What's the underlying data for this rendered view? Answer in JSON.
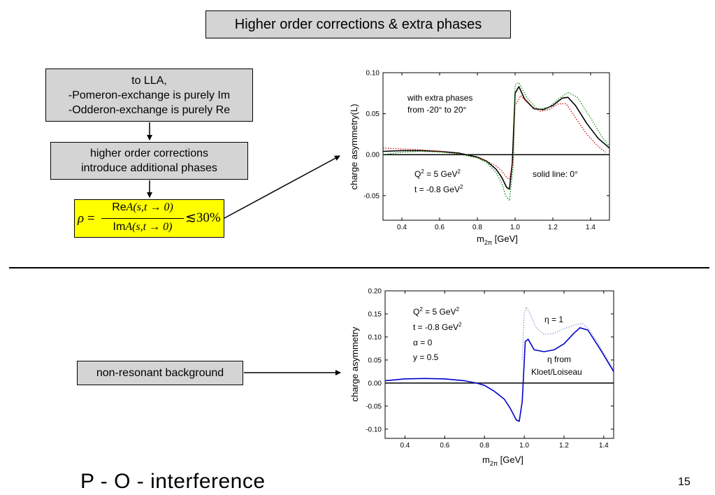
{
  "title": "Higher order corrections & extra phases",
  "flow": {
    "lla_lines": [
      "to LLA,",
      "-Pomeron-exchange is purely Im",
      "-Odderon-exchange is purely Re"
    ],
    "hoc_lines": [
      "higher order corrections",
      "introduce additional phases"
    ],
    "formula": {
      "rho": "ρ",
      "equals": "=",
      "num_re": "Re",
      "num_a": "A(s,t → 0)",
      "den_im": "Im",
      "den_a": "A(s,t → 0)",
      "rel": "≲",
      "pct": "30%"
    },
    "background_label": "non-resonant background"
  },
  "slide_title": "P - O - interference",
  "slide_number": "15",
  "chart_data": [
    {
      "type": "line",
      "xlabel": "m",
      "xlabel_sub": "2π",
      "xlabel_unit": " [GeV]",
      "ylabel": "charge asymmetry(L)",
      "xlim": [
        0.3,
        1.5
      ],
      "ylim": [
        -0.08,
        0.1
      ],
      "xticks": [
        "0.4",
        "0.6",
        "0.8",
        "1.0",
        "1.2",
        "1.4"
      ],
      "xtick_values": [
        0.4,
        0.6,
        0.8,
        1.0,
        1.2,
        1.4
      ],
      "yticks": [
        "-0.05",
        "0.00",
        "0.05",
        "0.10"
      ],
      "ytick_values": [
        -0.05,
        0.0,
        0.05,
        0.1
      ],
      "annotations": {
        "phases_1": "with extra phases",
        "phases_2": "from -20° to 20°",
        "q2": "Q",
        "q2_sup": "2",
        "q2_rest": " = 5 GeV",
        "q2_unit_sup": "2",
        "t": "t = -0.8 GeV",
        "t_sup": "2",
        "solid": "solid line: 0°"
      },
      "series": [
        {
          "style": "solid",
          "color": "#000000",
          "x": [
            0.3,
            0.4,
            0.5,
            0.6,
            0.7,
            0.8,
            0.85,
            0.9,
            0.93,
            0.955,
            0.97,
            0.985,
            1.0,
            1.02,
            1.05,
            1.1,
            1.15,
            1.2,
            1.25,
            1.28,
            1.32,
            1.38,
            1.44,
            1.5
          ],
          "y": [
            0.004,
            0.005,
            0.005,
            0.004,
            0.002,
            -0.003,
            -0.008,
            -0.018,
            -0.028,
            -0.04,
            -0.042,
            -0.01,
            0.075,
            0.083,
            0.068,
            0.056,
            0.055,
            0.06,
            0.069,
            0.07,
            0.06,
            0.038,
            0.02,
            0.008
          ]
        },
        {
          "style": "dotted",
          "color": "#cc0000",
          "x": [
            0.3,
            0.4,
            0.5,
            0.6,
            0.7,
            0.8,
            0.85,
            0.9,
            0.93,
            0.955,
            0.97,
            0.99,
            1.0,
            1.03,
            1.08,
            1.13,
            1.18,
            1.23,
            1.27,
            1.32,
            1.38,
            1.44,
            1.48
          ],
          "y": [
            0.008,
            0.007,
            0.006,
            0.004,
            0.001,
            -0.004,
            -0.008,
            -0.014,
            -0.02,
            -0.028,
            -0.03,
            -0.005,
            0.06,
            0.072,
            0.06,
            0.053,
            0.055,
            0.062,
            0.062,
            0.045,
            0.025,
            0.01,
            0.003
          ]
        },
        {
          "style": "dotted",
          "color": "#008800",
          "x": [
            0.3,
            0.4,
            0.5,
            0.6,
            0.7,
            0.8,
            0.85,
            0.9,
            0.93,
            0.95,
            0.97,
            0.99,
            1.0,
            1.02,
            1.06,
            1.12,
            1.18,
            1.23,
            1.28,
            1.33,
            1.4,
            1.46,
            1.5
          ],
          "y": [
            0.0,
            0.003,
            0.004,
            0.003,
            0.001,
            -0.004,
            -0.01,
            -0.022,
            -0.035,
            -0.05,
            -0.056,
            -0.015,
            0.085,
            0.088,
            0.07,
            0.055,
            0.058,
            0.068,
            0.076,
            0.07,
            0.045,
            0.022,
            0.01
          ]
        }
      ]
    },
    {
      "type": "line",
      "xlabel": "m",
      "xlabel_sub": "2π",
      "xlabel_unit": " [GeV]",
      "ylabel": "charge asymmetry",
      "xlim": [
        0.3,
        1.45
      ],
      "ylim": [
        -0.12,
        0.2
      ],
      "xticks": [
        "0.4",
        "0.6",
        "0.8",
        "1.0",
        "1.2",
        "1.4"
      ],
      "xtick_values": [
        0.4,
        0.6,
        0.8,
        1.0,
        1.2,
        1.4
      ],
      "yticks": [
        "-0.10",
        "-0.05",
        "0.00",
        "0.05",
        "0.10",
        "0.15",
        "0.20"
      ],
      "ytick_values": [
        -0.1,
        -0.05,
        0.0,
        0.05,
        0.1,
        0.15,
        0.2
      ],
      "annotations": {
        "q2": "Q",
        "q2_sup": "2",
        "q2_rest": " = 5 GeV",
        "q2_unit_sup": "2",
        "t": "t = -0.8 GeV",
        "t_sup": "2",
        "alpha": "α = 0",
        "y": "y = 0.5",
        "eta1": "η = 1",
        "eta_from": "η from",
        "kl": "Kloet/Loiseau"
      },
      "series": [
        {
          "style": "solid",
          "color": "#0000cc",
          "x": [
            0.3,
            0.4,
            0.5,
            0.6,
            0.7,
            0.76,
            0.8,
            0.85,
            0.9,
            0.93,
            0.96,
            0.975,
            0.99,
            1.005,
            1.02,
            1.05,
            1.1,
            1.15,
            1.2,
            1.25,
            1.28,
            1.32,
            1.38,
            1.45
          ],
          "y": [
            0.005,
            0.009,
            0.01,
            0.009,
            0.005,
            0.0,
            -0.005,
            -0.018,
            -0.035,
            -0.055,
            -0.08,
            -0.083,
            -0.04,
            0.09,
            0.095,
            0.072,
            0.068,
            0.072,
            0.085,
            0.108,
            0.12,
            0.115,
            0.075,
            0.025
          ]
        },
        {
          "style": "dotted",
          "color": "#8899cc",
          "x": [
            0.99,
            1.0,
            1.01,
            1.03,
            1.06,
            1.1,
            1.15,
            1.2,
            1.25,
            1.29,
            1.33,
            1.38,
            1.45
          ],
          "y": [
            0.05,
            0.15,
            0.165,
            0.15,
            0.12,
            0.105,
            0.108,
            0.118,
            0.125,
            0.13,
            0.115,
            0.08,
            0.03
          ]
        }
      ]
    }
  ]
}
